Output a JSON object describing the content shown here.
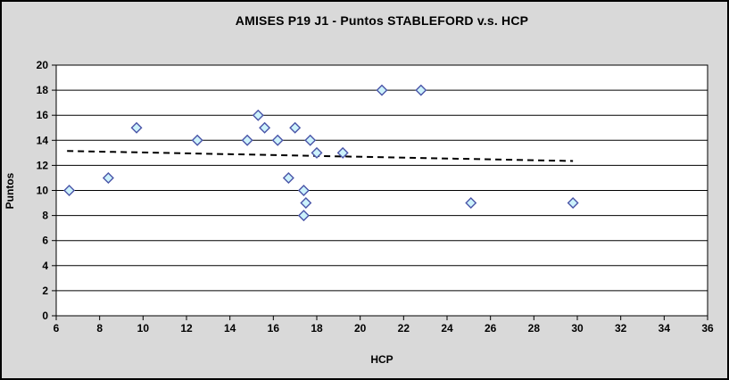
{
  "chart_data": {
    "type": "scatter",
    "title": "AMISES P19 J1 - Puntos STABLEFORD v.s. HCP",
    "xlabel": "HCP",
    "ylabel": "Puntos",
    "xlim": [
      6,
      36
    ],
    "ylim": [
      0,
      20
    ],
    "xticks": [
      6,
      8,
      10,
      12,
      14,
      16,
      18,
      20,
      22,
      24,
      26,
      28,
      30,
      32,
      34,
      36
    ],
    "yticks": [
      0,
      2,
      4,
      6,
      8,
      10,
      12,
      14,
      16,
      18,
      20
    ],
    "grid": {
      "horizontal": true,
      "vertical": false
    },
    "legend": "none",
    "series": [
      {
        "name": "Puntos STABLEFORD",
        "marker": "diamond",
        "points": [
          [
            6.6,
            10
          ],
          [
            8.4,
            11
          ],
          [
            9.7,
            15
          ],
          [
            12.5,
            14
          ],
          [
            14.8,
            14
          ],
          [
            15.3,
            16
          ],
          [
            15.6,
            15
          ],
          [
            16.2,
            14
          ],
          [
            16.7,
            11
          ],
          [
            17.0,
            15
          ],
          [
            17.4,
            10
          ],
          [
            17.4,
            8
          ],
          [
            17.5,
            9
          ],
          [
            17.7,
            14
          ],
          [
            18.0,
            13
          ],
          [
            19.2,
            13
          ],
          [
            21.0,
            18
          ],
          [
            22.8,
            18
          ],
          [
            25.1,
            9
          ],
          [
            29.8,
            9
          ]
        ]
      }
    ],
    "trendline": {
      "type": "linear",
      "style": "dashed",
      "start": [
        6.5,
        13.15
      ],
      "end": [
        29.8,
        12.35
      ]
    },
    "colors": {
      "background": "#d9d9d9",
      "plot_background": "#ffffff",
      "grid": "#000000",
      "axis": "#000000",
      "marker_fill": "#ccf2fb",
      "marker_stroke": "#4a55a8",
      "trendline": "#000000",
      "text": "#000000",
      "border": "#000000"
    }
  }
}
